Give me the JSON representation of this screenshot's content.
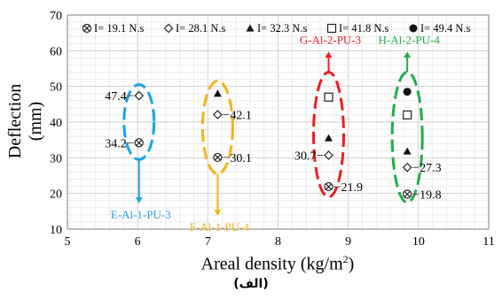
{
  "chart_data": {
    "type": "scatter",
    "xlabel": "Areal density (kg/m",
    "xlabel_sup": "2",
    "xlabel_tail": ")",
    "ylabel": "Deflection (mm)",
    "xlim": [
      5,
      11
    ],
    "ylim": [
      10,
      70
    ],
    "xticks": [
      5,
      6,
      7,
      8,
      9,
      10,
      11
    ],
    "yticks": [
      10,
      20,
      30,
      40,
      50,
      60,
      70
    ],
    "grid": true,
    "legend_position": "top",
    "series": [
      {
        "name": "I= 19.1 N.s",
        "marker": "circle-x",
        "x": [
          6.02,
          7.14,
          8.72,
          9.84
        ],
        "y": [
          34.2,
          30.1,
          21.9,
          19.8
        ]
      },
      {
        "name": "I= 28.1 N.s",
        "marker": "diamond",
        "x": [
          6.02,
          7.14,
          8.72,
          9.84
        ],
        "y": [
          47.4,
          42.1,
          30.7,
          27.3
        ]
      },
      {
        "name": "I= 32.3 N.s",
        "marker": "triangle",
        "x": [
          7.14,
          8.72,
          9.84
        ],
        "y": [
          48,
          35.5,
          31.8
        ]
      },
      {
        "name": "I= 41.8 N.s",
        "marker": "square",
        "x": [
          8.72,
          9.84
        ],
        "y": [
          47,
          42
        ]
      },
      {
        "name": "I= 49.4 N.s",
        "marker": "circle-filled",
        "x": [
          9.84
        ],
        "y": [
          48.5
        ]
      }
    ],
    "annotations": [
      {
        "text": "47.4",
        "x": 6.02,
        "y": 47.4,
        "side": "left"
      },
      {
        "text": "34.2",
        "x": 6.02,
        "y": 34.2,
        "side": "left"
      },
      {
        "text": "42.1",
        "x": 7.14,
        "y": 42.1,
        "side": "right"
      },
      {
        "text": "30.1",
        "x": 7.14,
        "y": 30.1,
        "side": "right"
      },
      {
        "text": "30.7",
        "x": 8.72,
        "y": 30.7,
        "side": "left"
      },
      {
        "text": "21.9",
        "x": 8.72,
        "y": 21.9,
        "side": "right"
      },
      {
        "text": "27.3",
        "x": 9.84,
        "y": 27.3,
        "side": "right"
      },
      {
        "text": "19.8",
        "x": 9.84,
        "y": 19.8,
        "side": "right"
      }
    ],
    "groups": [
      {
        "label": "E-Al-1-PU-3",
        "color": "#1aa3e8",
        "x": 6.02,
        "y_range": [
          29.5,
          50.5
        ],
        "arrow": "down",
        "label_y": 12.5
      },
      {
        "label": "F-Al-1-PU-4",
        "color": "#f6b21a",
        "x": 7.14,
        "y_range": [
          25.5,
          51.5
        ],
        "arrow": "down",
        "label_y": 9
      },
      {
        "label": "G-Al-2-PU-3",
        "color": "#ee1c24",
        "x": 8.72,
        "y_range": [
          19,
          54
        ],
        "arrow": "up",
        "label_y": 61.5
      },
      {
        "label": "H-Al-2-PU-4",
        "color": "#1fad4b",
        "x": 9.84,
        "y_range": [
          17.5,
          54
        ],
        "arrow": "up",
        "label_y": 61.5
      }
    ]
  },
  "caption": "(الف)"
}
